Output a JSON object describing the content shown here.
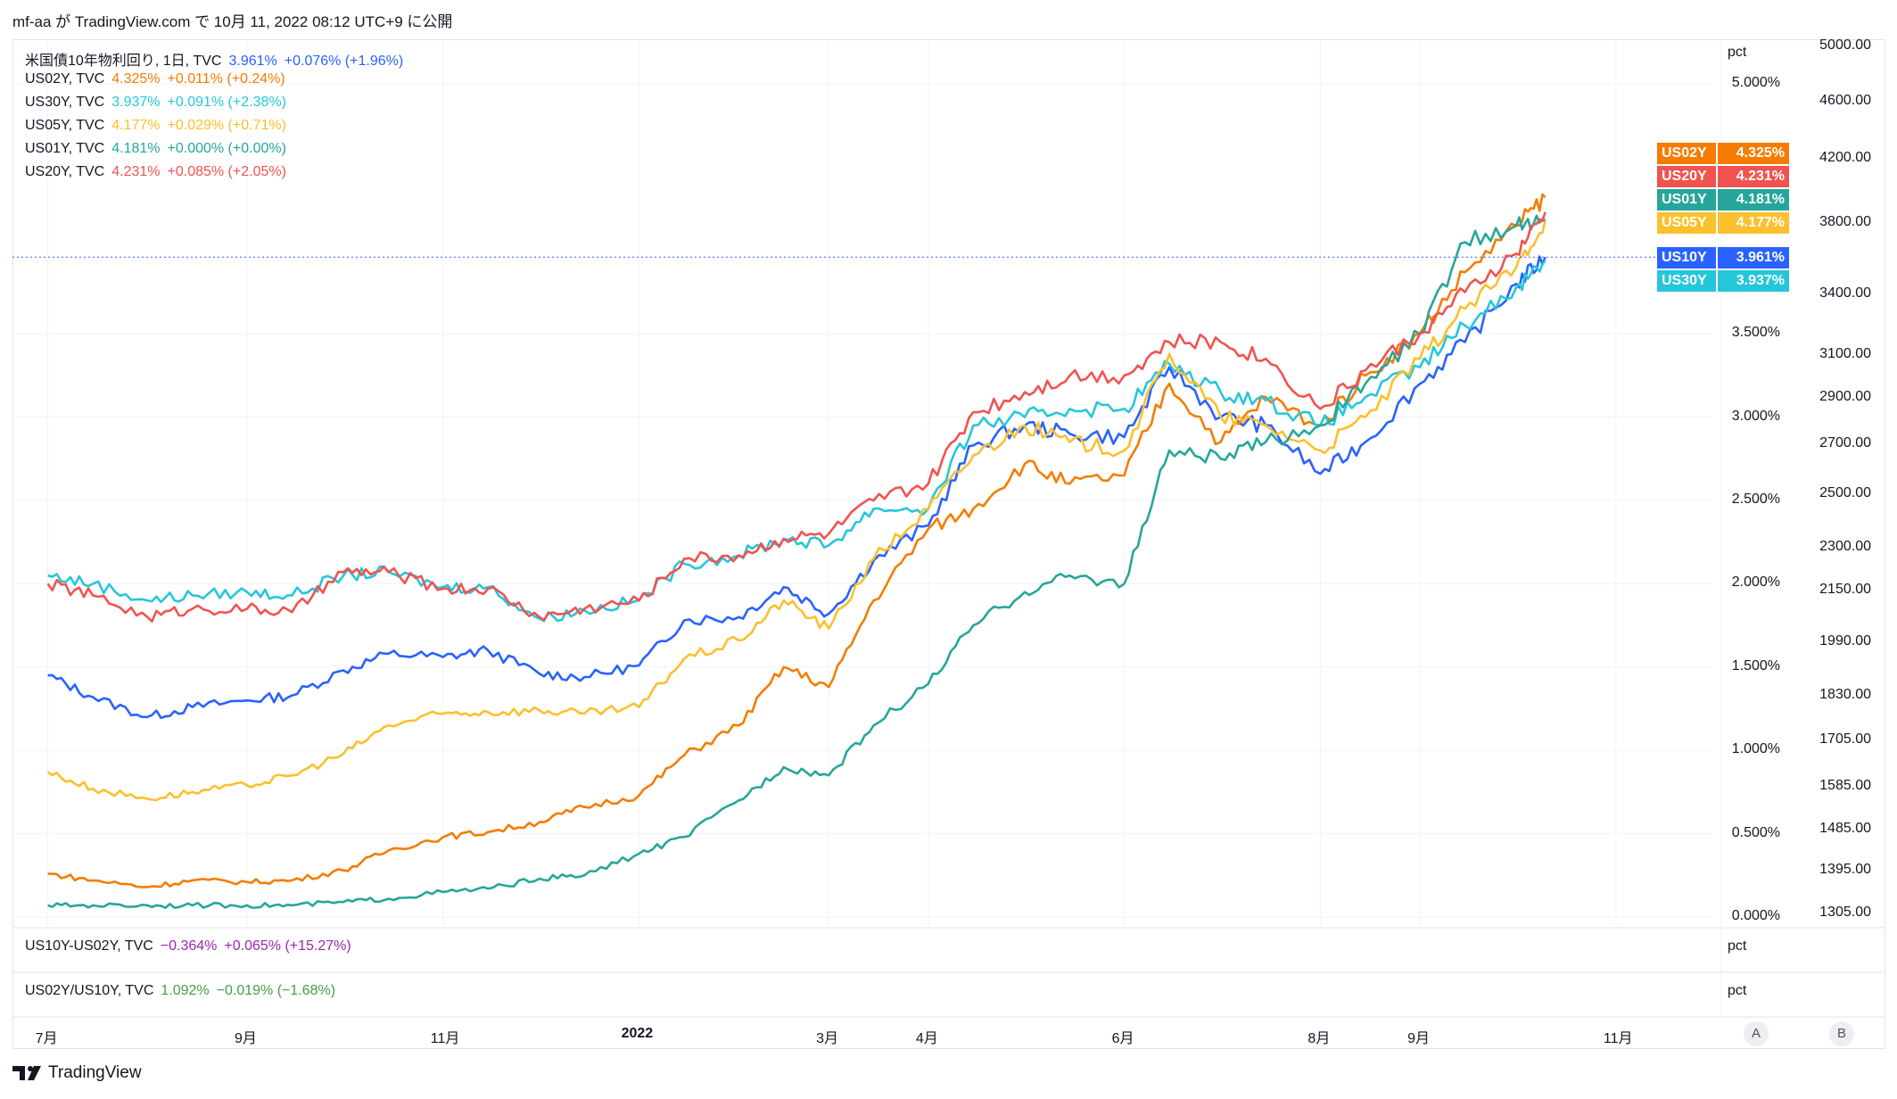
{
  "header": {
    "published": "mf-aa が TradingView.com で 10月 11, 2022 08:12 UTC+9 に公開"
  },
  "legend": [
    {
      "name": "米国債10年物利回り, 1日, TVC",
      "value": "3.961%",
      "change": "+0.076% (+1.96%)",
      "color": "#2962ff"
    },
    {
      "name": "US02Y, TVC",
      "value": "4.325%",
      "change": "+0.011% (+0.24%)",
      "color": "#f57c00"
    },
    {
      "name": "US30Y, TVC",
      "value": "3.937%",
      "change": "+0.091% (+2.38%)",
      "color": "#26c6da"
    },
    {
      "name": "US05Y, TVC",
      "value": "4.177%",
      "change": "+0.029% (+0.71%)",
      "color": "#fbc02d"
    },
    {
      "name": "US01Y, TVC",
      "value": "4.181%",
      "change": "+0.000% (+0.00%)",
      "color": "#26a69a"
    },
    {
      "name": "US20Y, TVC",
      "value": "4.231%",
      "change": "+0.085% (+2.05%)",
      "color": "#f05350"
    }
  ],
  "badges": [
    {
      "sym": "US02Y",
      "val": "4.325%",
      "color": "#f57c00"
    },
    {
      "sym": "US20Y",
      "val": "4.231%",
      "color": "#f05350"
    },
    {
      "sym": "US01Y",
      "val": "4.181%",
      "color": "#26a69a"
    },
    {
      "sym": "US05Y",
      "val": "4.177%",
      "color": "#fbc02d"
    },
    {
      "sym": "US10Y",
      "val": "3.961%",
      "color": "#2962ff"
    },
    {
      "sym": "US30Y",
      "val": "3.937%",
      "color": "#26c6da"
    }
  ],
  "pct_label": "pct",
  "pct_axis": [
    "5.000%",
    "3.500%",
    "3.000%",
    "2.500%",
    "2.000%",
    "1.500%",
    "1.000%",
    "0.500%",
    "0.000%"
  ],
  "right_axis": [
    "5000.00",
    "4600.00",
    "4200.00",
    "3800.00",
    "3400.00",
    "3100.00",
    "2900.00",
    "2700.00",
    "2500.00",
    "2300.00",
    "2150.00",
    "1990.00",
    "1830.00",
    "1705.00",
    "1585.00",
    "1485.00",
    "1395.00",
    "1305.00"
  ],
  "panes": [
    {
      "name": "US10Y-US02Y, TVC",
      "value": "−0.364%",
      "change": "+0.065% (+15.27%)",
      "color": "#9c27b0",
      "unit": "pct"
    },
    {
      "name": "US02Y/US10Y, TVC",
      "value": "1.092%",
      "change": "−0.019% (−1.68%)",
      "color": "#43a047",
      "unit": "pct"
    }
  ],
  "time_axis": [
    "7月",
    "9月",
    "11月",
    "2022",
    "3月",
    "4月",
    "6月",
    "8月",
    "9月",
    "11月"
  ],
  "buttons": {
    "a": "A",
    "b": "B"
  },
  "brand": "TradingView",
  "chart_data": {
    "type": "line",
    "x": [
      "2021-07-01",
      "2021-07-15",
      "2021-08-01",
      "2021-08-15",
      "2021-09-01",
      "2021-09-15",
      "2021-10-01",
      "2021-10-15",
      "2021-11-01",
      "2021-11-15",
      "2021-12-01",
      "2021-12-15",
      "2022-01-01",
      "2022-01-15",
      "2022-02-01",
      "2022-02-15",
      "2022-03-01",
      "2022-03-15",
      "2022-04-01",
      "2022-04-15",
      "2022-05-01",
      "2022-05-15",
      "2022-06-01",
      "2022-06-15",
      "2022-07-01",
      "2022-07-15",
      "2022-08-01",
      "2022-08-15",
      "2022-09-01",
      "2022-09-15",
      "2022-10-01",
      "2022-10-10"
    ],
    "ylim": [
      0,
      5
    ],
    "y_unit": "%",
    "series": [
      {
        "name": "US10Y",
        "color": "#2962ff",
        "values": [
          1.45,
          1.32,
          1.2,
          1.26,
          1.3,
          1.33,
          1.48,
          1.58,
          1.56,
          1.6,
          1.46,
          1.44,
          1.51,
          1.78,
          1.8,
          1.98,
          1.82,
          2.14,
          2.35,
          2.83,
          2.95,
          2.9,
          2.88,
          3.3,
          3.0,
          2.95,
          2.66,
          2.85,
          3.2,
          3.45,
          3.8,
          3.96
        ]
      },
      {
        "name": "US02Y",
        "color": "#f57c00",
        "values": [
          0.26,
          0.22,
          0.18,
          0.22,
          0.21,
          0.22,
          0.28,
          0.4,
          0.48,
          0.51,
          0.57,
          0.66,
          0.73,
          0.97,
          1.15,
          1.5,
          1.38,
          1.9,
          2.33,
          2.45,
          2.72,
          2.6,
          2.65,
          3.2,
          2.85,
          3.12,
          2.95,
          3.25,
          3.5,
          3.87,
          4.15,
          4.32
        ]
      },
      {
        "name": "US30Y",
        "color": "#26c6da",
        "values": [
          2.05,
          2.0,
          1.9,
          1.93,
          1.95,
          1.93,
          2.05,
          2.07,
          1.98,
          1.98,
          1.79,
          1.84,
          1.9,
          2.12,
          2.17,
          2.27,
          2.23,
          2.45,
          2.45,
          2.95,
          3.0,
          3.05,
          3.05,
          3.32,
          3.15,
          3.1,
          2.95,
          3.12,
          3.3,
          3.55,
          3.78,
          3.94
        ]
      },
      {
        "name": "US05Y",
        "color": "#fbc02d",
        "values": [
          0.87,
          0.77,
          0.71,
          0.75,
          0.79,
          0.85,
          0.98,
          1.15,
          1.22,
          1.23,
          1.24,
          1.22,
          1.26,
          1.55,
          1.66,
          1.9,
          1.73,
          2.15,
          2.45,
          2.77,
          2.95,
          2.85,
          2.8,
          3.38,
          3.0,
          2.95,
          2.8,
          3.0,
          3.35,
          3.65,
          3.9,
          4.18
        ]
      },
      {
        "name": "US01Y",
        "color": "#26a69a",
        "values": [
          0.07,
          0.07,
          0.07,
          0.07,
          0.07,
          0.07,
          0.09,
          0.11,
          0.15,
          0.17,
          0.23,
          0.25,
          0.38,
          0.48,
          0.7,
          0.9,
          0.85,
          1.15,
          1.4,
          1.75,
          1.95,
          2.05,
          2.0,
          2.8,
          2.75,
          2.85,
          2.95,
          3.2,
          3.5,
          4.05,
          4.15,
          4.18
        ]
      },
      {
        "name": "US20Y",
        "color": "#f05350",
        "values": [
          2.0,
          1.93,
          1.8,
          1.85,
          1.85,
          1.83,
          2.07,
          2.07,
          1.97,
          1.97,
          1.8,
          1.85,
          1.9,
          2.15,
          2.17,
          2.27,
          2.3,
          2.5,
          2.6,
          3.03,
          3.15,
          3.25,
          3.25,
          3.45,
          3.45,
          3.35,
          3.05,
          3.28,
          3.5,
          3.75,
          3.98,
          4.23
        ]
      }
    ]
  }
}
